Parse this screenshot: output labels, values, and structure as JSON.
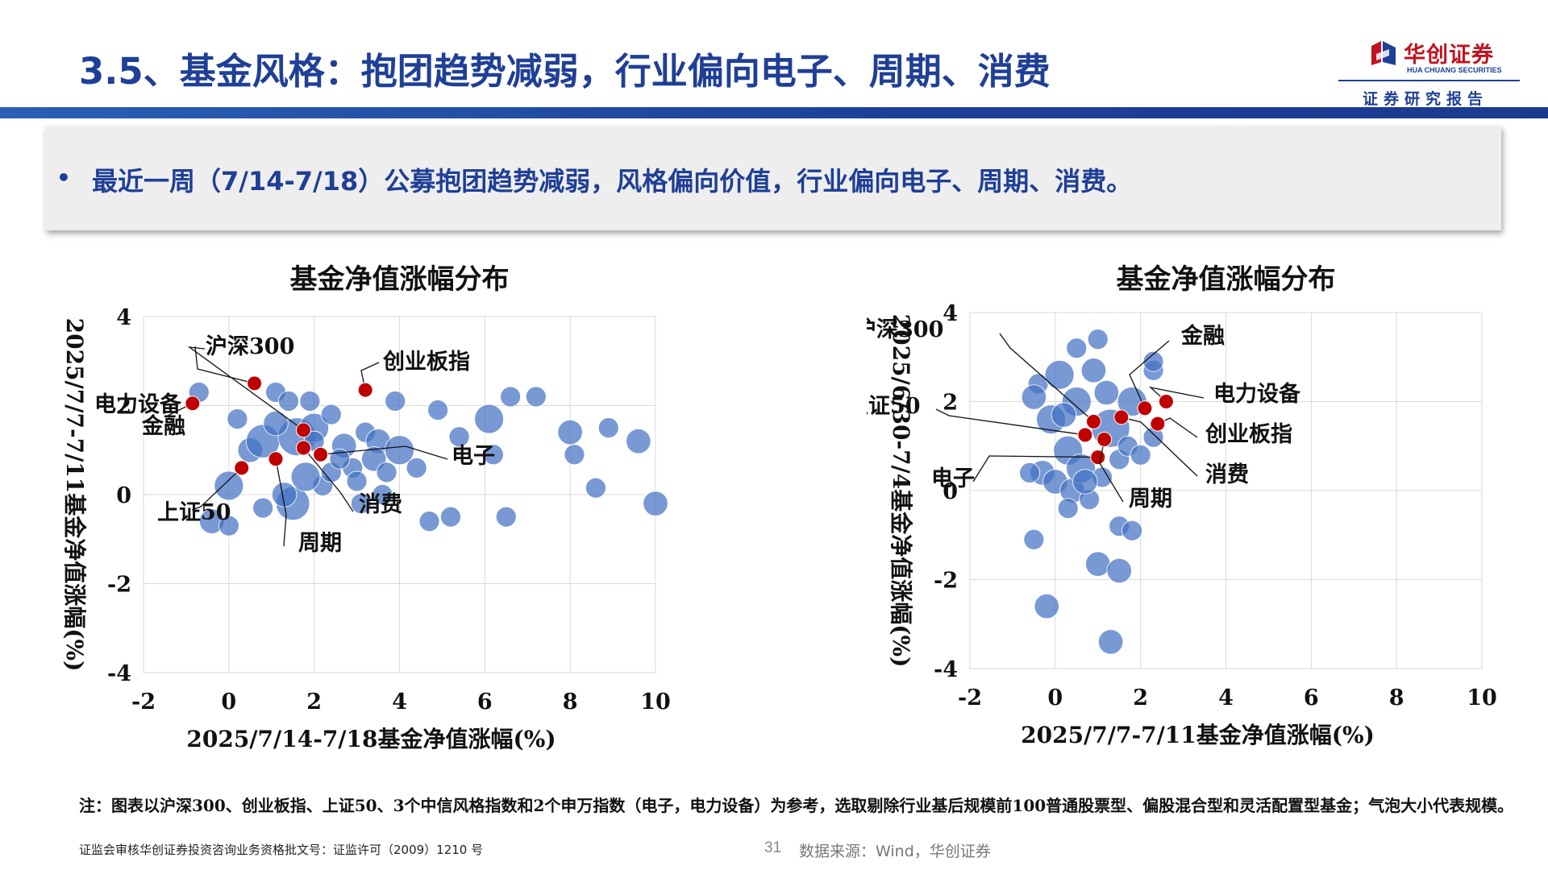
{
  "header": {
    "title": "3.5、基金风格：抱团趋势减弱，行业偏向电子、周期、消费",
    "logo_name": "华创证券",
    "logo_en": "HUA CHUANG SECURITIES",
    "logo_sub": "证券研究报告"
  },
  "highlight": {
    "bullet": "•",
    "text": "最近一周（7/14-7/18）公募抱团趋势减弱，风格偏向价值，行业偏向电子、周期、消费。"
  },
  "colors": {
    "brand_blue": "#1f3f97",
    "bubble": "#4472c4",
    "marker": "#c00000"
  },
  "chart_data": [
    {
      "type": "scatter",
      "title": "基金净值涨幅分布",
      "xlabel": "2025/7/14-7/18基金净值涨幅(%)",
      "ylabel": "2025/7/7-7/11基金净值涨幅(%)",
      "xlim": [
        -2,
        10
      ],
      "ylim": [
        -4,
        4
      ],
      "xticks": [
        "-2",
        "0",
        "2",
        "4",
        "6",
        "8",
        "10"
      ],
      "yticks": [
        "4",
        "2",
        "0",
        "-2",
        "-4"
      ],
      "grid": true,
      "indices": [
        {
          "name": "电力设备",
          "x": 0.6,
          "y": 2.5
        },
        {
          "name": "沪深300",
          "x": 1.75,
          "y": 1.45
        },
        {
          "name": "创业板指",
          "x": 3.2,
          "y": 2.35
        },
        {
          "name": "金融",
          "x": -0.85,
          "y": 2.05
        },
        {
          "name": "电子",
          "x": 2.15,
          "y": 0.9
        },
        {
          "name": "上证50",
          "x": 0.3,
          "y": 0.6
        },
        {
          "name": "消费",
          "x": 1.75,
          "y": 1.05
        },
        {
          "name": "周期",
          "x": 1.1,
          "y": 0.8
        }
      ],
      "funds": [
        {
          "x": -0.7,
          "y": 2.3,
          "s": 1
        },
        {
          "x": 0.2,
          "y": 1.7,
          "s": 1
        },
        {
          "x": 0.5,
          "y": 1.0,
          "s": 1.5
        },
        {
          "x": 0.8,
          "y": 1.2,
          "s": 2.5
        },
        {
          "x": 1.1,
          "y": 2.3,
          "s": 1
        },
        {
          "x": 1.4,
          "y": 2.1,
          "s": 1
        },
        {
          "x": 1.6,
          "y": 1.3,
          "s": 3
        },
        {
          "x": 2.0,
          "y": 1.5,
          "s": 2
        },
        {
          "x": 1.9,
          "y": 2.1,
          "s": 1
        },
        {
          "x": 2.4,
          "y": 1.8,
          "s": 1
        },
        {
          "x": 2.7,
          "y": 1.1,
          "s": 1.5
        },
        {
          "x": 2.9,
          "y": 0.6,
          "s": 1
        },
        {
          "x": 3.0,
          "y": 0.3,
          "s": 1
        },
        {
          "x": 3.2,
          "y": 1.4,
          "s": 1
        },
        {
          "x": 3.5,
          "y": 1.2,
          "s": 1.5
        },
        {
          "x": 3.4,
          "y": 0.8,
          "s": 1.5
        },
        {
          "x": 3.7,
          "y": 0.5,
          "s": 1
        },
        {
          "x": 3.6,
          "y": 0.0,
          "s": 1
        },
        {
          "x": 4.0,
          "y": 1.0,
          "s": 2
        },
        {
          "x": 3.9,
          "y": 2.1,
          "s": 1
        },
        {
          "x": 4.4,
          "y": 0.6,
          "s": 1
        },
        {
          "x": 4.9,
          "y": 1.9,
          "s": 1
        },
        {
          "x": 5.2,
          "y": -0.5,
          "s": 1
        },
        {
          "x": 6.1,
          "y": 1.7,
          "s": 2
        },
        {
          "x": 6.2,
          "y": 0.9,
          "s": 1
        },
        {
          "x": 6.5,
          "y": -0.5,
          "s": 1
        },
        {
          "x": 6.6,
          "y": 2.2,
          "s": 1
        },
        {
          "x": 7.2,
          "y": 2.2,
          "s": 1
        },
        {
          "x": 8.0,
          "y": 1.4,
          "s": 1.5
        },
        {
          "x": 8.9,
          "y": 1.5,
          "s": 1
        },
        {
          "x": 8.1,
          "y": 0.9,
          "s": 1
        },
        {
          "x": 8.6,
          "y": 0.15,
          "s": 1
        },
        {
          "x": 9.6,
          "y": 1.2,
          "s": 1.5
        },
        {
          "x": 10.0,
          "y": -0.2,
          "s": 1.5
        },
        {
          "x": 0.0,
          "y": 0.2,
          "s": 2
        },
        {
          "x": -0.4,
          "y": -0.6,
          "s": 1.5
        },
        {
          "x": 0.0,
          "y": -0.7,
          "s": 1
        },
        {
          "x": 1.5,
          "y": -0.2,
          "s": 2.5
        },
        {
          "x": 2.2,
          "y": 0.2,
          "s": 1
        },
        {
          "x": 1.8,
          "y": 0.4,
          "s": 2
        },
        {
          "x": 2.4,
          "y": 0.5,
          "s": 1
        },
        {
          "x": 1.3,
          "y": 0.0,
          "s": 1.5
        },
        {
          "x": 0.8,
          "y": -0.3,
          "s": 1
        },
        {
          "x": 4.7,
          "y": -0.6,
          "s": 1
        },
        {
          "x": 3.1,
          "y": -0.2,
          "s": 1
        },
        {
          "x": 2.0,
          "y": 1.2,
          "s": 1
        },
        {
          "x": 1.1,
          "y": 1.6,
          "s": 1.5
        },
        {
          "x": 2.6,
          "y": 0.8,
          "s": 1
        },
        {
          "x": 5.4,
          "y": 1.3,
          "s": 1
        }
      ]
    },
    {
      "type": "scatter",
      "title": "基金净值涨幅分布",
      "xlabel": "2025/7/7-7/11基金净值涨幅(%)",
      "ylabel": "2025/6/30-7/4基金净值涨幅(%)",
      "xlim": [
        -2,
        10
      ],
      "ylim": [
        -4,
        4
      ],
      "xticks": [
        "-2",
        "0",
        "2",
        "4",
        "6",
        "8",
        "10"
      ],
      "yticks": [
        "4",
        "2",
        "0",
        "-2",
        "-4"
      ],
      "grid": true,
      "indices": [
        {
          "name": "沪深300",
          "x": 0.9,
          "y": 1.55
        },
        {
          "name": "金融",
          "x": 2.1,
          "y": 1.85
        },
        {
          "name": "电力设备",
          "x": 2.6,
          "y": 2.0
        },
        {
          "name": "上证50",
          "x": 0.7,
          "y": 1.25
        },
        {
          "name": "创业板指",
          "x": 2.4,
          "y": 1.5
        },
        {
          "name": "电子",
          "x": 1.0,
          "y": 0.75
        },
        {
          "name": "消费",
          "x": 1.55,
          "y": 1.65
        },
        {
          "name": "周期",
          "x": 1.15,
          "y": 1.15
        }
      ],
      "funds": [
        {
          "x": -0.4,
          "y": 2.4,
          "s": 1
        },
        {
          "x": 0.1,
          "y": 2.6,
          "s": 2
        },
        {
          "x": 0.5,
          "y": 3.2,
          "s": 1
        },
        {
          "x": 1.0,
          "y": 3.4,
          "s": 1
        },
        {
          "x": 0.9,
          "y": 2.7,
          "s": 1.5
        },
        {
          "x": -0.5,
          "y": 2.1,
          "s": 1.5
        },
        {
          "x": -0.1,
          "y": 1.6,
          "s": 2
        },
        {
          "x": 0.5,
          "y": 2.0,
          "s": 2
        },
        {
          "x": 1.8,
          "y": 2.0,
          "s": 2
        },
        {
          "x": 1.3,
          "y": 1.4,
          "s": 3
        },
        {
          "x": 2.3,
          "y": 2.7,
          "s": 1
        },
        {
          "x": 2.3,
          "y": 2.9,
          "s": 1
        },
        {
          "x": 0.3,
          "y": 0.9,
          "s": 2
        },
        {
          "x": -0.3,
          "y": 0.4,
          "s": 1.5
        },
        {
          "x": -0.6,
          "y": 0.4,
          "s": 1
        },
        {
          "x": 0.0,
          "y": 0.2,
          "s": 1.5
        },
        {
          "x": 0.4,
          "y": 0.0,
          "s": 1.5
        },
        {
          "x": 0.8,
          "y": -0.2,
          "s": 1
        },
        {
          "x": 1.5,
          "y": 0.7,
          "s": 1
        },
        {
          "x": 1.7,
          "y": 1.0,
          "s": 1
        },
        {
          "x": 2.0,
          "y": 0.8,
          "s": 1
        },
        {
          "x": 2.3,
          "y": 1.2,
          "s": 1
        },
        {
          "x": -0.5,
          "y": -1.1,
          "s": 1
        },
        {
          "x": 1.5,
          "y": -0.8,
          "s": 1
        },
        {
          "x": 1.8,
          "y": -0.9,
          "s": 1
        },
        {
          "x": 1.0,
          "y": -1.65,
          "s": 1.5
        },
        {
          "x": 1.5,
          "y": -1.8,
          "s": 1.5
        },
        {
          "x": -0.2,
          "y": -2.6,
          "s": 1.5
        },
        {
          "x": 1.3,
          "y": -3.4,
          "s": 1.5
        },
        {
          "x": 0.6,
          "y": 0.5,
          "s": 2
        },
        {
          "x": 0.2,
          "y": 1.7,
          "s": 1.5
        },
        {
          "x": 1.1,
          "y": 0.3,
          "s": 1
        },
        {
          "x": 0.3,
          "y": -0.4,
          "s": 1
        },
        {
          "x": 1.2,
          "y": 2.2,
          "s": 1.5
        },
        {
          "x": 0.7,
          "y": 0.2,
          "s": 1.5
        }
      ]
    }
  ],
  "footer": {
    "note": "注：图表以沪深300、创业板指、上证50、3个中信风格指数和2个申万指数（电子，电力设备）为参考，选取剔除行业基后规模前100普通股票型、偏股混合型和灵活配置型基金；气泡大小代表规模。",
    "license": "证监会审核华创证券投资咨询业务资格批文号：证监许可（2009）1210 号",
    "page": "31",
    "source": "数据来源：Wind，华创证券"
  }
}
